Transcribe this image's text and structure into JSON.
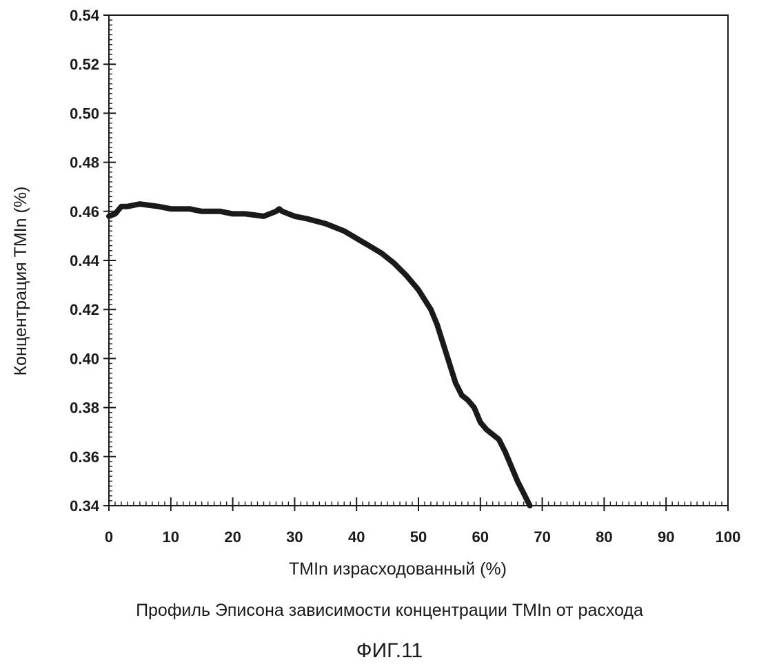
{
  "chart_data": {
    "type": "line",
    "title": "",
    "xlabel": "TMIn израсходованный (%)",
    "ylabel": "Концентрация TMIn (%)",
    "xlim": [
      0,
      100
    ],
    "ylim": [
      0.34,
      0.54
    ],
    "xticks": [
      "0",
      "10",
      "20",
      "30",
      "40",
      "50",
      "60",
      "70",
      "80",
      "90",
      "100"
    ],
    "yticks": [
      "0.34",
      "0.36",
      "0.38",
      "0.40",
      "0.42",
      "0.44",
      "0.46",
      "0.48",
      "0.50",
      "0.52",
      "0.54"
    ],
    "grid": false,
    "legend": "none",
    "line_color": "#1a1a1a",
    "series": [
      {
        "x": [
          0,
          1,
          2,
          3,
          5,
          8,
          10,
          13,
          15,
          18,
          20,
          22,
          25,
          27,
          27.5,
          28,
          30,
          32,
          35,
          38,
          40,
          42,
          44,
          46,
          48,
          50,
          52,
          53,
          54,
          55,
          56,
          57,
          58,
          59,
          60,
          61,
          62,
          63,
          64,
          65,
          66,
          67,
          68
        ],
        "y": [
          0.458,
          0.459,
          0.462,
          0.462,
          0.463,
          0.462,
          0.461,
          0.461,
          0.46,
          0.46,
          0.459,
          0.459,
          0.458,
          0.46,
          0.461,
          0.46,
          0.458,
          0.457,
          0.455,
          0.452,
          0.449,
          0.446,
          0.443,
          0.439,
          0.434,
          0.428,
          0.42,
          0.414,
          0.406,
          0.398,
          0.39,
          0.385,
          0.383,
          0.38,
          0.374,
          0.371,
          0.369,
          0.367,
          0.362,
          0.356,
          0.35,
          0.345,
          0.34
        ]
      }
    ]
  },
  "caption": "Профиль Эписона зависимости концентрации TMIn от расхода",
  "figure_label": "ФИГ.11"
}
